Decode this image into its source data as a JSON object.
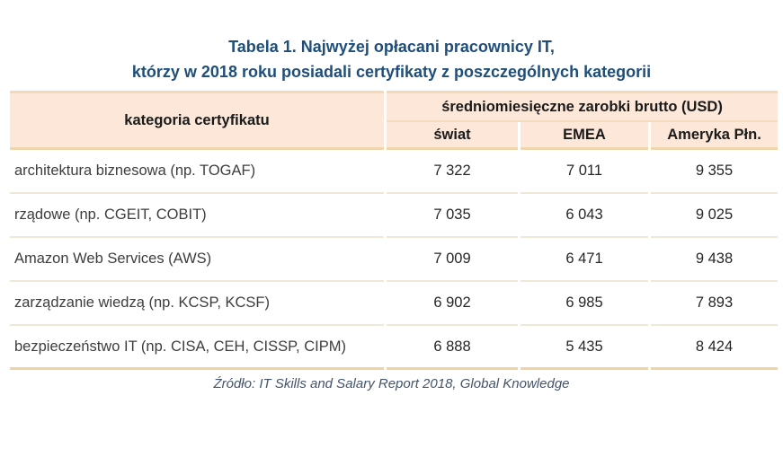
{
  "title": {
    "line1": "Tabela 1. Najwyżej opłacani pracownicy IT,",
    "line2": "którzy w 2018 roku posiadali certyfikaty z poszczególnych kategorii"
  },
  "table": {
    "category_header": "kategoria certyfikatu",
    "group_header": "średniomiesięczne zarobki brutto (USD)",
    "sub_headers": [
      "świat",
      "EMEA",
      "Ameryka Płn."
    ],
    "rows": [
      {
        "category": "architektura biznesowa (np. TOGAF)",
        "values": [
          "7 322",
          "7 011",
          "9 355"
        ]
      },
      {
        "category": "rządowe (np. CGEIT, COBIT)",
        "values": [
          "7 035",
          "6 043",
          "9 025"
        ]
      },
      {
        "category": "Amazon Web Services (AWS)",
        "values": [
          "7 009",
          "6 471",
          "9 438"
        ]
      },
      {
        "category": "zarządzanie wiedzą (np. KCSP, KCSF)",
        "values": [
          "6 902",
          "6 985",
          "7 893"
        ]
      },
      {
        "category": "bezpieczeństwo IT (np. CISA, CEH, CISSP, CIPM)",
        "values": [
          "6 888",
          "5 435",
          "8 424"
        ]
      }
    ]
  },
  "source": "Źródło: IT Skills and Salary Report 2018, Global Knowledge",
  "colors": {
    "title_text": "#1F4E79",
    "header_background": "#FCE7D9",
    "outer_border": "#F0D6AE",
    "row_separator": "#EFE8D6",
    "bottom_border": "#F1D2A2",
    "source_text": "#44546A",
    "data_text": "#262626"
  }
}
